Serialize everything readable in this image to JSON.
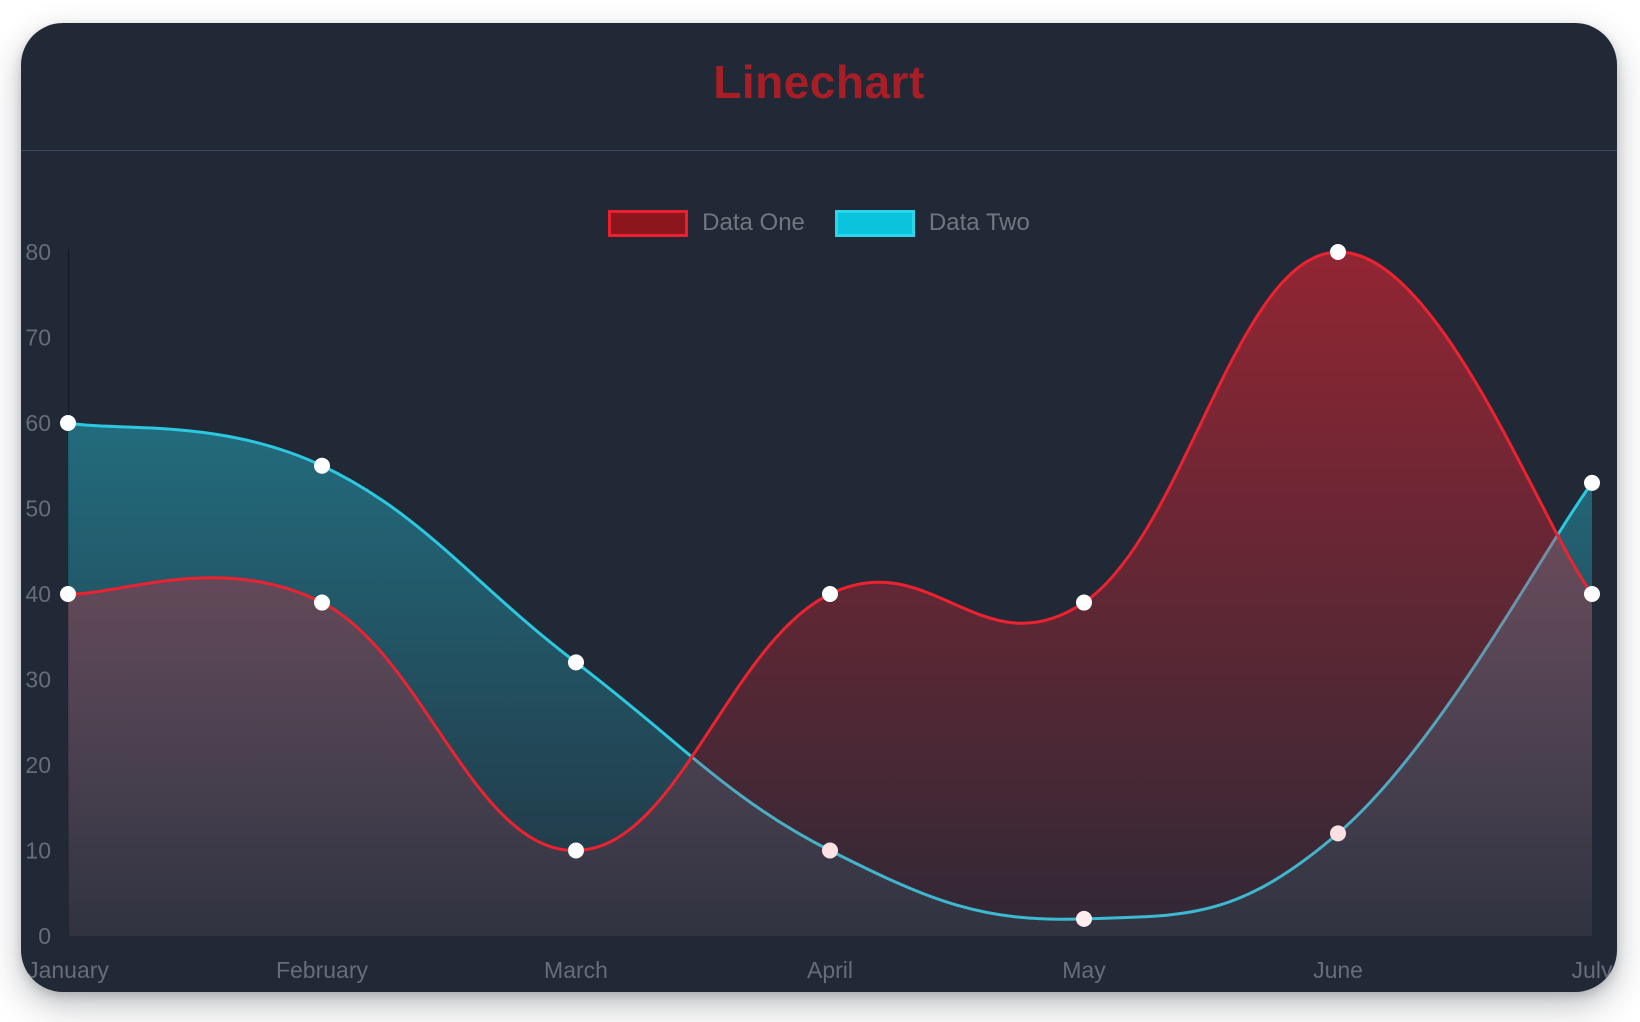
{
  "page_title": "Linechart",
  "colors": {
    "card_background": "#222936",
    "title": "#a81e26",
    "divider": "#3d495c",
    "axis_label": "#676d78",
    "legend_label": "#717680",
    "axis_line": "#161b26",
    "point_fill": "#ffffff",
    "page_background": "#ffffff"
  },
  "chart_data": {
    "type": "line",
    "title": "Linechart",
    "categories": [
      "January",
      "February",
      "March",
      "April",
      "May",
      "June",
      "July"
    ],
    "series": [
      {
        "name": "Data One",
        "line_color": "#ed2230",
        "fill_color": "#ed2230",
        "swatch_fill": "#8c161c",
        "swatch_border": "#ed1f2f",
        "values": [
          40,
          39,
          10,
          40,
          39,
          80,
          40
        ]
      },
      {
        "name": "Data Two",
        "line_color": "#2bc8e0",
        "fill_color": "#22c4dc",
        "swatch_fill": "#0ac3dc",
        "swatch_border": "#29d6ec",
        "values": [
          60,
          55,
          32,
          10,
          2,
          12,
          53
        ]
      }
    ],
    "xlabel": "",
    "ylabel": "",
    "ylim": [
      0,
      80
    ],
    "yticks": [
      0,
      10,
      20,
      30,
      40,
      50,
      60,
      70,
      80
    ],
    "legend_position": "top",
    "grid": false,
    "smooth": true,
    "area_fill": true
  }
}
